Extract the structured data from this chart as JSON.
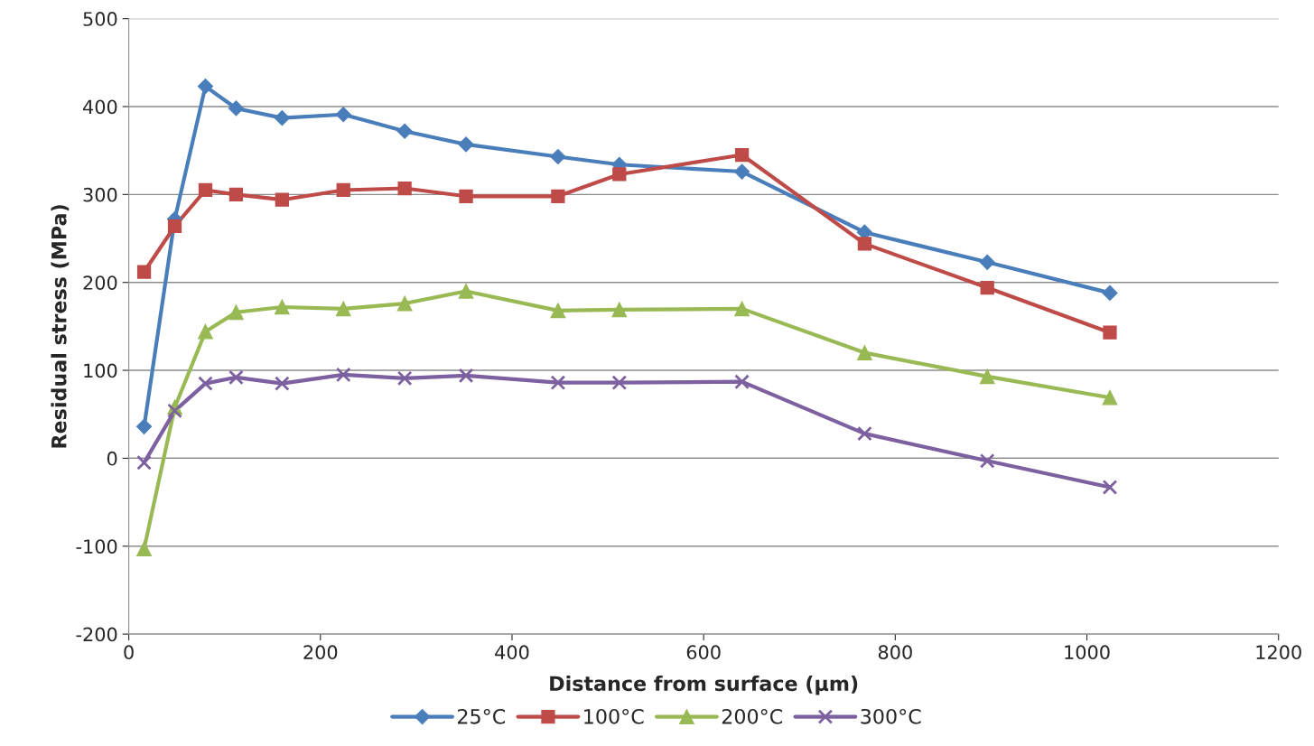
{
  "chart_data": {
    "type": "line",
    "xlabel": "Distance from surface (µm)",
    "ylabel": "Residual stress (MPa)",
    "x": [
      16,
      48,
      80,
      112,
      160,
      224,
      288,
      352,
      448,
      512,
      640,
      768,
      896,
      1024
    ],
    "xlim": [
      0,
      1200
    ],
    "xticks": [
      0,
      200,
      400,
      600,
      800,
      1000,
      1200
    ],
    "ylim": [
      -200,
      500
    ],
    "yticks": [
      -200,
      -100,
      0,
      100,
      200,
      300,
      400,
      500
    ],
    "grid": "y",
    "legend": "bottom",
    "series": [
      {
        "name": "25°C",
        "color": "#4a7ebb",
        "marker": "diamond",
        "values": [
          36,
          272,
          423,
          398,
          387,
          391,
          372,
          357,
          343,
          334,
          326,
          257,
          223,
          188
        ]
      },
      {
        "name": "100°C",
        "color": "#be4b48",
        "marker": "square",
        "values": [
          212,
          264,
          305,
          300,
          294,
          305,
          307,
          298,
          298,
          323,
          345,
          244,
          194,
          143
        ]
      },
      {
        "name": "200°C",
        "color": "#98b954",
        "marker": "triangle",
        "values": [
          -103,
          58,
          144,
          166,
          172,
          170,
          176,
          190,
          168,
          169,
          170,
          120,
          93,
          69
        ]
      },
      {
        "name": "300°C",
        "color": "#7d60a0",
        "marker": "cross",
        "values": [
          -5,
          54,
          85,
          92,
          85,
          95,
          91,
          94,
          86,
          86,
          87,
          28,
          -3,
          -33
        ]
      }
    ]
  }
}
